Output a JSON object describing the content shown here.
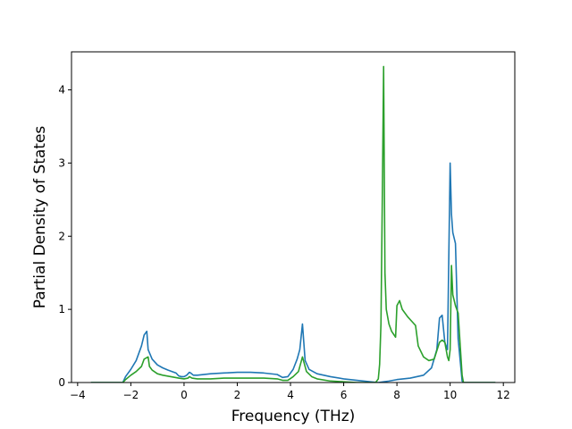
{
  "chart_data": {
    "type": "line",
    "title": "",
    "xlabel": "Frequency (THz)",
    "ylabel": "Partial Density of States",
    "xlim": [
      -4.23,
      12.43
    ],
    "ylim": [
      0,
      4.52
    ],
    "xticks": [
      -4,
      -2,
      0,
      2,
      4,
      6,
      8,
      10,
      12
    ],
    "xtick_labels": [
      "−4",
      "−2",
      "0",
      "2",
      "4",
      "6",
      "8",
      "10",
      "12"
    ],
    "yticks": [
      0,
      1,
      2,
      3,
      4
    ],
    "ytick_labels": [
      "0",
      "1",
      "2",
      "3",
      "4"
    ],
    "grid": false,
    "legend": "none",
    "series": [
      {
        "color": "#1f77b4",
        "x": [
          -3.5,
          -2.3,
          -2.2,
          -2.0,
          -1.8,
          -1.6,
          -1.5,
          -1.4,
          -1.35,
          -1.2,
          -1.0,
          -0.8,
          -0.6,
          -0.3,
          -0.2,
          -0.1,
          0.0,
          0.1,
          0.2,
          0.25,
          0.35,
          0.5,
          1.0,
          1.5,
          2.0,
          2.5,
          3.0,
          3.5,
          3.7,
          3.9,
          4.1,
          4.25,
          4.35,
          4.45,
          4.55,
          4.7,
          5.0,
          5.5,
          6.0,
          6.5,
          7.0,
          7.3,
          7.5,
          7.7,
          8.0,
          8.5,
          9.0,
          9.3,
          9.5,
          9.6,
          9.7,
          9.8,
          9.9,
          10.0,
          10.05,
          10.1,
          10.2,
          10.3,
          10.45,
          10.5,
          11.7
        ],
        "y": [
          0.0,
          0.0,
          0.08,
          0.18,
          0.3,
          0.5,
          0.65,
          0.7,
          0.45,
          0.32,
          0.24,
          0.2,
          0.17,
          0.13,
          0.09,
          0.08,
          0.08,
          0.1,
          0.14,
          0.13,
          0.1,
          0.1,
          0.12,
          0.13,
          0.14,
          0.14,
          0.13,
          0.11,
          0.07,
          0.08,
          0.18,
          0.32,
          0.45,
          0.8,
          0.3,
          0.18,
          0.12,
          0.08,
          0.05,
          0.03,
          0.01,
          0.0,
          0.01,
          0.02,
          0.04,
          0.06,
          0.1,
          0.2,
          0.45,
          0.88,
          0.92,
          0.55,
          0.45,
          3.0,
          2.3,
          2.05,
          1.9,
          0.6,
          0.02,
          0.0,
          0.0
        ]
      },
      {
        "color": "#2ca02c",
        "x": [
          -3.5,
          -2.3,
          -2.2,
          -2.0,
          -1.8,
          -1.6,
          -1.5,
          -1.35,
          -1.3,
          -1.2,
          -1.0,
          -0.8,
          -0.5,
          -0.2,
          0.0,
          0.15,
          0.2,
          0.3,
          0.5,
          1.0,
          1.5,
          2.0,
          2.5,
          3.0,
          3.5,
          3.7,
          3.9,
          4.1,
          4.3,
          4.45,
          4.6,
          4.8,
          5.0,
          5.5,
          6.0,
          6.5,
          7.0,
          7.2,
          7.3,
          7.35,
          7.4,
          7.45,
          7.5,
          7.55,
          7.6,
          7.7,
          7.8,
          7.95,
          8.0,
          8.1,
          8.2,
          8.4,
          8.6,
          8.7,
          8.8,
          9.0,
          9.2,
          9.4,
          9.6,
          9.7,
          9.8,
          9.9,
          9.95,
          10.0,
          10.05,
          10.1,
          10.2,
          10.3,
          10.45,
          10.5,
          11.7
        ],
        "y": [
          0.0,
          0.0,
          0.04,
          0.1,
          0.15,
          0.22,
          0.32,
          0.35,
          0.22,
          0.17,
          0.12,
          0.1,
          0.08,
          0.06,
          0.05,
          0.06,
          0.08,
          0.06,
          0.05,
          0.05,
          0.06,
          0.06,
          0.06,
          0.06,
          0.05,
          0.03,
          0.03,
          0.08,
          0.15,
          0.35,
          0.15,
          0.08,
          0.05,
          0.02,
          0.01,
          0.0,
          0.0,
          0.0,
          0.05,
          0.25,
          0.8,
          2.5,
          4.32,
          1.5,
          1.0,
          0.8,
          0.7,
          0.62,
          1.05,
          1.12,
          1.0,
          0.9,
          0.82,
          0.78,
          0.5,
          0.35,
          0.3,
          0.32,
          0.55,
          0.58,
          0.55,
          0.35,
          0.3,
          0.45,
          1.6,
          1.2,
          1.05,
          0.95,
          0.1,
          0.0,
          0.0
        ]
      }
    ]
  }
}
